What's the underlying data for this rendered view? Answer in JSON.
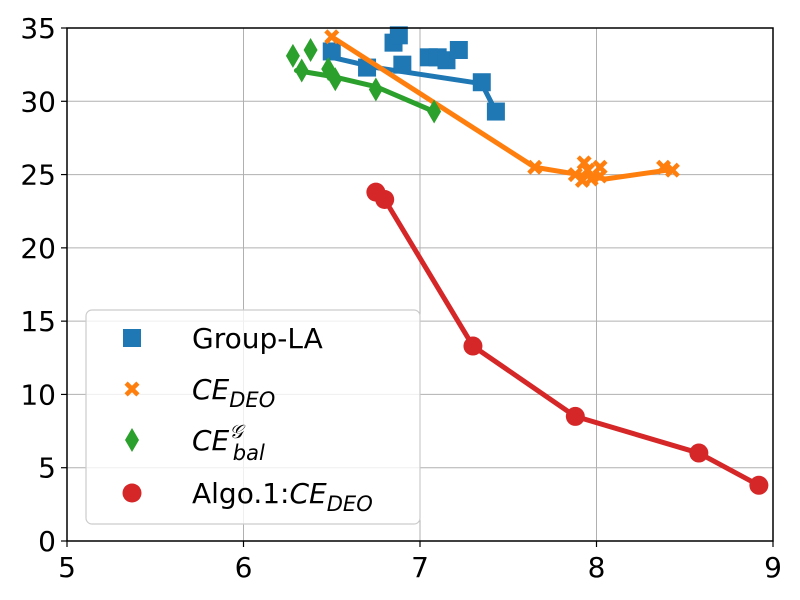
{
  "chart_data": {
    "type": "line",
    "title": "",
    "xlabel": "",
    "ylabel": "",
    "xlim": [
      5,
      9
    ],
    "ylim": [
      0,
      35
    ],
    "xticks": [
      5,
      6,
      7,
      8,
      9
    ],
    "yticks": [
      0,
      5,
      10,
      15,
      20,
      25,
      30,
      35
    ],
    "grid": true,
    "legend_position": "bottom-left",
    "series": [
      {
        "name": "Group-LA",
        "legend_label": {
          "main": "Group-LA",
          "sub": "",
          "sup": ""
        },
        "color": "#1f77b4",
        "marker": "square",
        "points": [
          [
            6.5,
            33.4
          ],
          [
            6.7,
            32.3
          ],
          [
            6.85,
            34.0
          ],
          [
            6.88,
            34.5
          ],
          [
            6.9,
            32.5
          ],
          [
            7.05,
            33.0
          ],
          [
            7.1,
            33.0
          ],
          [
            7.15,
            32.8
          ],
          [
            7.22,
            33.5
          ],
          [
            7.35,
            31.3
          ],
          [
            7.43,
            29.3
          ]
        ],
        "line": [
          [
            6.5,
            33.0
          ],
          [
            6.75,
            32.3
          ],
          [
            7.35,
            31.2
          ],
          [
            7.43,
            29.3
          ]
        ]
      },
      {
        "name": "CE_DEO",
        "legend_label": {
          "main": "CE",
          "sub": "DEO",
          "sup": ""
        },
        "color": "#ff7f0e",
        "marker": "x",
        "points": [
          [
            6.5,
            34.4
          ],
          [
            7.65,
            25.5
          ],
          [
            7.88,
            25.0
          ],
          [
            7.92,
            24.6
          ],
          [
            7.93,
            25.8
          ],
          [
            7.95,
            25.3
          ],
          [
            7.97,
            24.7
          ],
          [
            8.02,
            25.5
          ],
          [
            8.02,
            24.9
          ],
          [
            8.38,
            25.5
          ],
          [
            8.43,
            25.3
          ]
        ],
        "line": [
          [
            6.5,
            34.4
          ],
          [
            7.65,
            25.5
          ],
          [
            7.9,
            25.0
          ],
          [
            8.05,
            24.7
          ],
          [
            8.4,
            25.3
          ]
        ]
      },
      {
        "name": "CE_bal^G",
        "legend_label": {
          "main": "CE",
          "sub": "bal",
          "sup": "𝒢"
        },
        "color": "#2ca02c",
        "marker": "diamond",
        "points": [
          [
            6.28,
            33.1
          ],
          [
            6.33,
            32.1
          ],
          [
            6.38,
            33.5
          ],
          [
            6.48,
            32.2
          ],
          [
            6.52,
            31.5
          ],
          [
            6.75,
            30.8
          ],
          [
            7.08,
            29.3
          ]
        ],
        "line": [
          [
            6.3,
            32.1
          ],
          [
            6.5,
            31.7
          ],
          [
            6.75,
            31.0
          ],
          [
            7.08,
            29.3
          ]
        ]
      },
      {
        "name": "Algo.1:CE_DEO",
        "legend_label": {
          "main": "Algo.1:CE",
          "sub": "DEO",
          "sup": ""
        },
        "color": "#d62728",
        "marker": "circle",
        "points": [
          [
            6.75,
            23.8
          ],
          [
            6.8,
            23.3
          ],
          [
            7.3,
            13.3
          ],
          [
            7.88,
            8.5
          ],
          [
            8.58,
            6.0
          ],
          [
            8.92,
            3.8
          ]
        ],
        "line": [
          [
            6.75,
            23.8
          ],
          [
            6.8,
            23.3
          ],
          [
            7.3,
            13.3
          ],
          [
            7.88,
            8.5
          ],
          [
            8.58,
            6.0
          ],
          [
            8.92,
            3.8
          ]
        ]
      }
    ]
  }
}
